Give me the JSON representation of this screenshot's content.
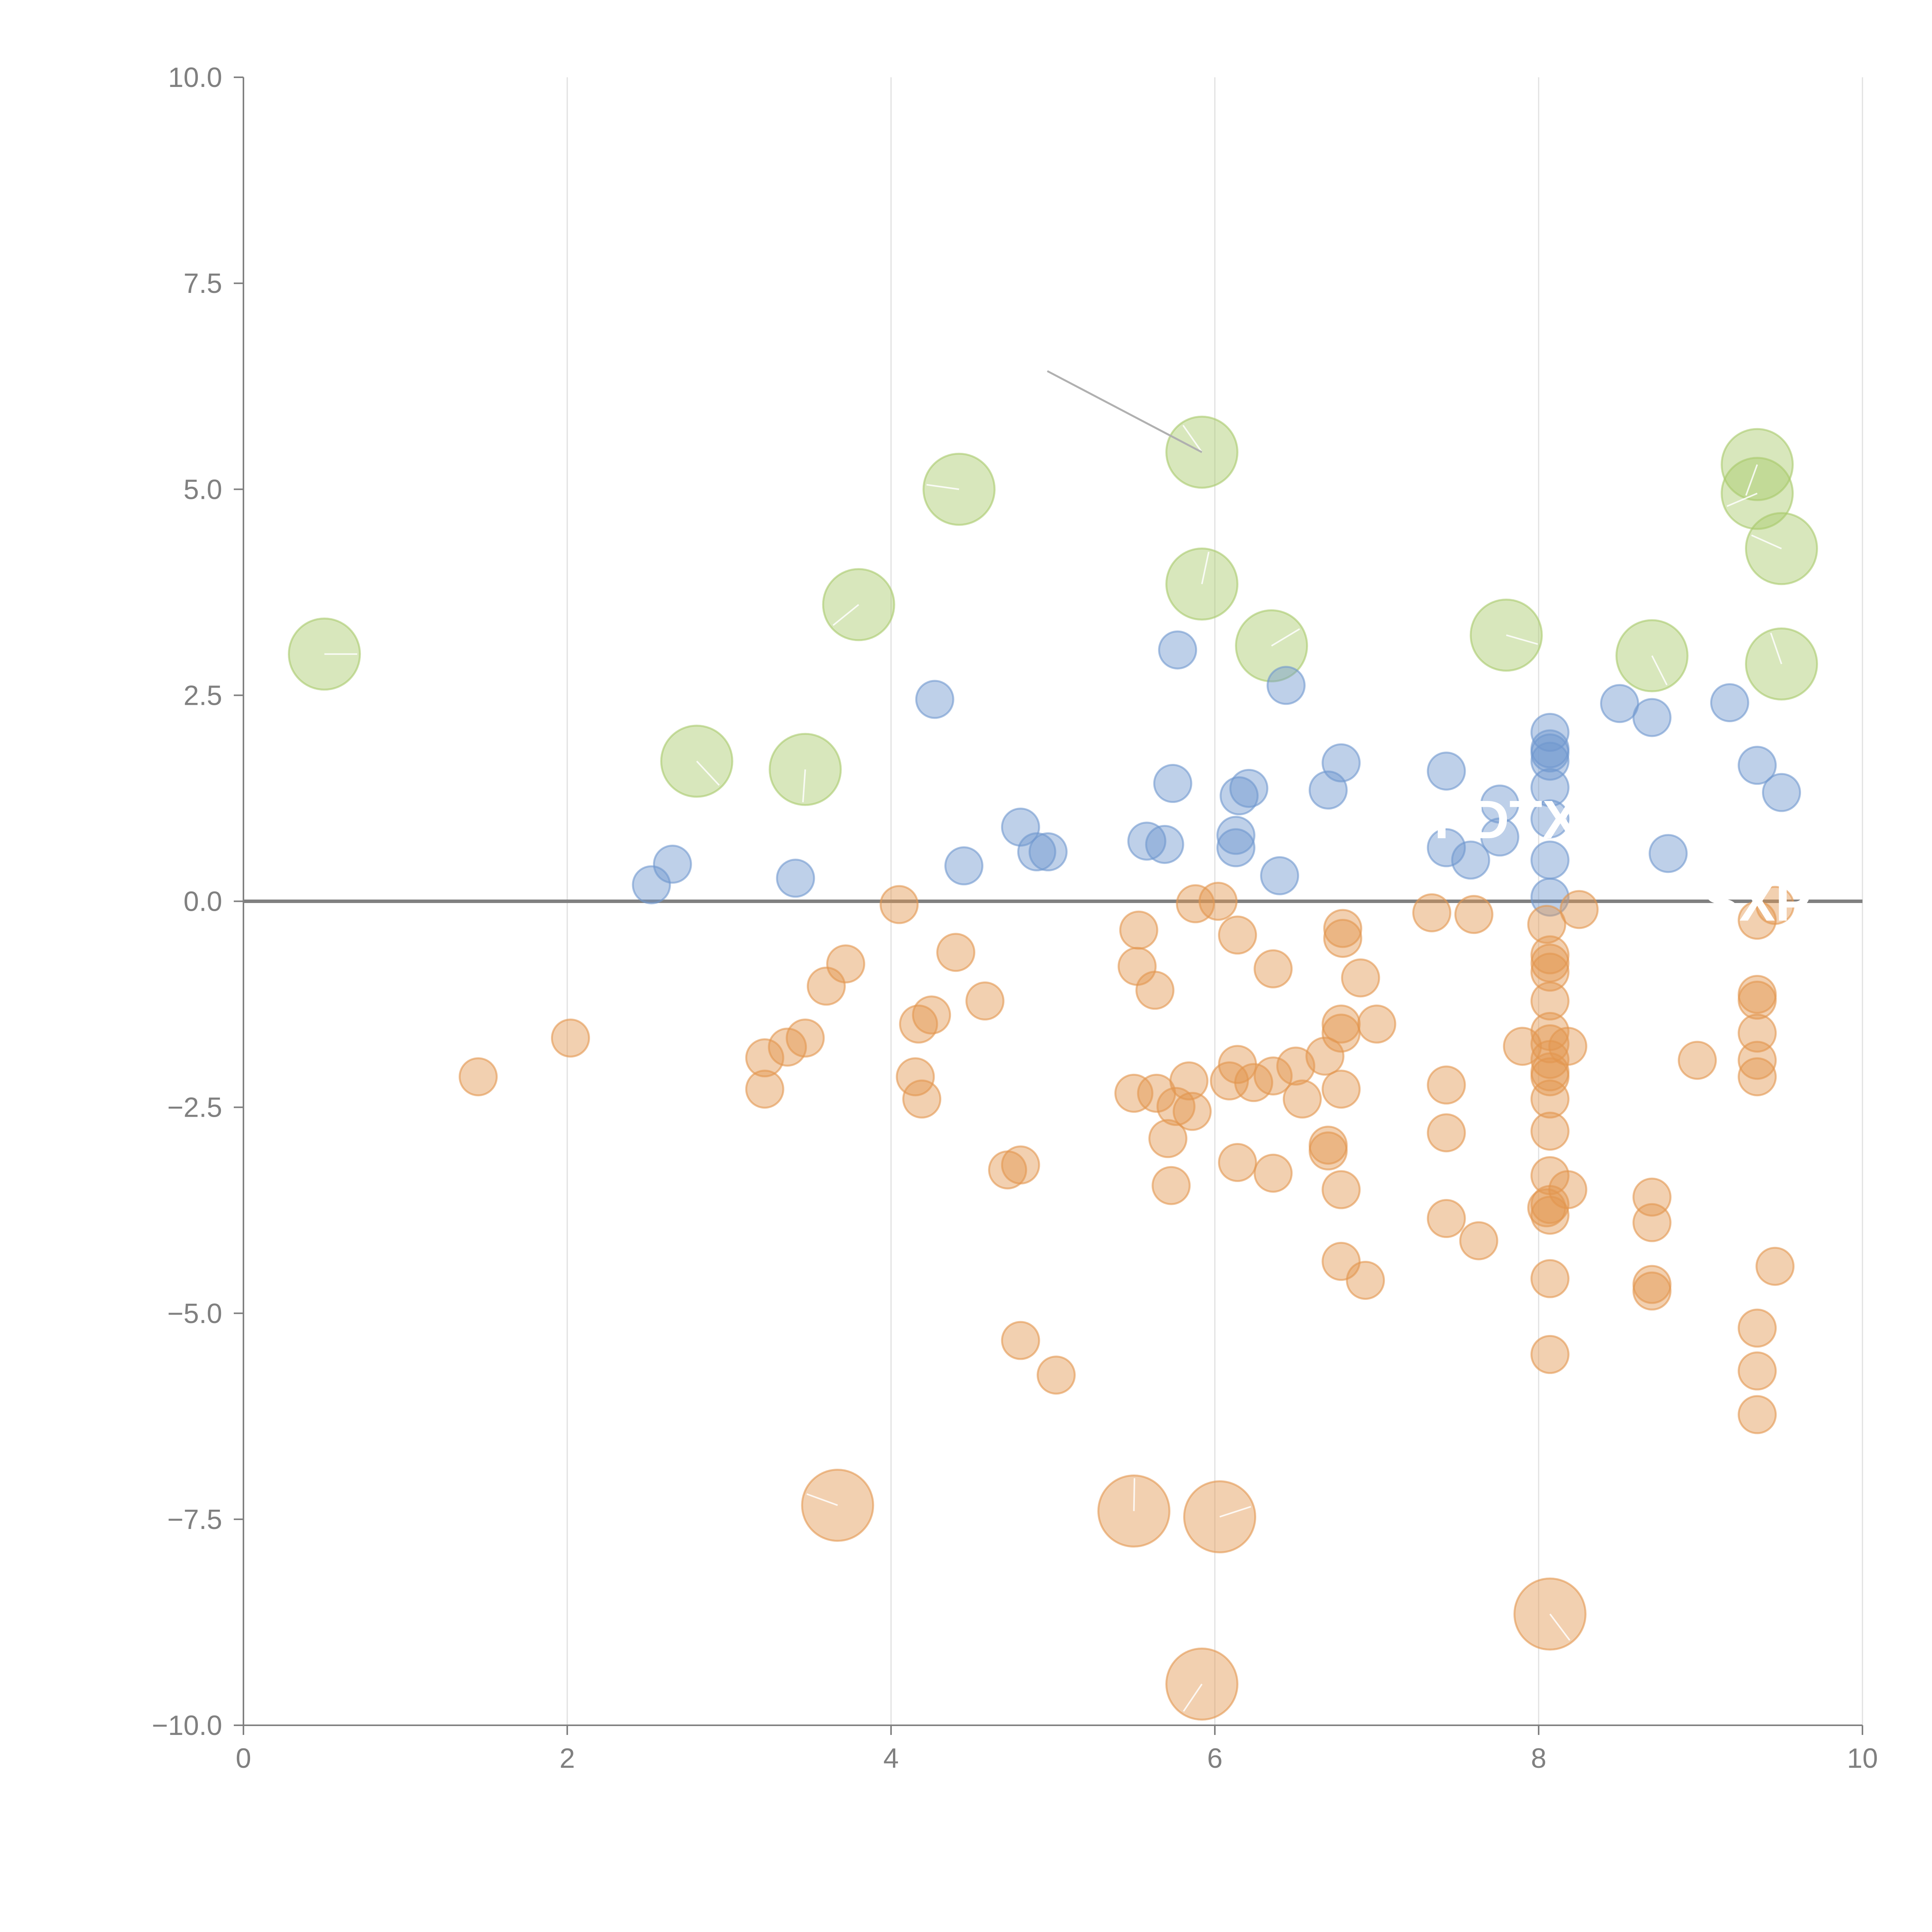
{
  "chart_data": {
    "type": "scatter",
    "title": "",
    "xlabel": "",
    "ylabel": "",
    "xlim": [
      0,
      10
    ],
    "ylim": [
      -10,
      10
    ],
    "grid": "vertical",
    "zero_line": true,
    "x_ticks": [
      "0",
      "2",
      "4",
      "6",
      "8",
      "10"
    ],
    "y_ticks": [
      "10.0",
      "7.5",
      "5.0",
      "2.5",
      "0.0",
      "−2.5",
      "−5.0",
      "−7.5",
      "−10.0"
    ],
    "colors": {
      "green": "#a9c96b",
      "blue": "#6f97cf",
      "orange": "#e3964f"
    },
    "annotations": [
      {
        "text": "PDTX",
        "x": 7.8,
        "y": 1.0
      },
      {
        "text": "SXP",
        "x": 9.35,
        "y": 0.0
      }
    ],
    "series": [
      {
        "name": "green",
        "color": "#a9c96b",
        "size": "large",
        "points": [
          [
            0.5,
            3.0
          ],
          [
            2.8,
            1.7
          ],
          [
            3.47,
            1.6
          ],
          [
            3.8,
            3.6
          ],
          [
            4.42,
            5.0
          ],
          [
            5.92,
            5.45
          ],
          [
            5.92,
            3.85
          ],
          [
            6.35,
            3.1
          ],
          [
            7.8,
            3.23
          ],
          [
            8.7,
            2.98
          ],
          [
            9.35,
            5.3
          ],
          [
            9.35,
            4.95
          ],
          [
            9.5,
            4.28
          ],
          [
            9.5,
            2.88
          ]
        ]
      },
      {
        "name": "blue",
        "color": "#6f97cf",
        "size": "medium",
        "points": [
          [
            2.52,
            0.2
          ],
          [
            2.65,
            0.45
          ],
          [
            3.41,
            0.28
          ],
          [
            4.27,
            2.45
          ],
          [
            4.45,
            0.43
          ],
          [
            4.8,
            0.9
          ],
          [
            4.9,
            0.6
          ],
          [
            4.97,
            0.6
          ],
          [
            5.58,
            0.73
          ],
          [
            5.69,
            0.69
          ],
          [
            5.74,
            1.43
          ],
          [
            5.77,
            3.05
          ],
          [
            6.13,
            0.65
          ],
          [
            6.15,
            1.28
          ],
          [
            6.21,
            1.37
          ],
          [
            6.13,
            0.8
          ],
          [
            6.4,
            0.31
          ],
          [
            6.44,
            2.62
          ],
          [
            6.7,
            1.35
          ],
          [
            6.78,
            1.68
          ],
          [
            7.43,
            1.58
          ],
          [
            7.43,
            0.65
          ],
          [
            7.58,
            0.5
          ],
          [
            7.76,
            1.18
          ],
          [
            7.76,
            0.78
          ],
          [
            8.07,
            2.05
          ],
          [
            8.07,
            1.85
          ],
          [
            8.07,
            1.7
          ],
          [
            8.07,
            1.38
          ],
          [
            8.07,
            1.0
          ],
          [
            8.07,
            0.5
          ],
          [
            8.07,
            0.05
          ],
          [
            8.07,
            1.8
          ],
          [
            8.5,
            2.4
          ],
          [
            8.7,
            2.23
          ],
          [
            8.8,
            0.58
          ],
          [
            9.18,
            2.41
          ],
          [
            9.35,
            1.65
          ],
          [
            9.5,
            1.32
          ]
        ]
      },
      {
        "name": "orange",
        "color": "#e3964f",
        "size": "medium",
        "points": [
          [
            1.45,
            -2.13
          ],
          [
            2.02,
            -1.66
          ],
          [
            3.22,
            -1.9
          ],
          [
            3.22,
            -2.28
          ],
          [
            3.36,
            -1.77
          ],
          [
            3.47,
            -1.66
          ],
          [
            3.6,
            -1.03
          ],
          [
            3.72,
            -0.76
          ],
          [
            4.05,
            -0.04
          ],
          [
            4.15,
            -2.13
          ],
          [
            4.17,
            -1.49
          ],
          [
            4.19,
            -2.4
          ],
          [
            4.25,
            -1.38
          ],
          [
            4.4,
            -0.62
          ],
          [
            4.58,
            -1.21
          ],
          [
            4.72,
            -3.26
          ],
          [
            4.8,
            -3.2
          ],
          [
            4.8,
            -5.33
          ],
          [
            5.02,
            -5.75
          ],
          [
            5.5,
            -2.33
          ],
          [
            5.52,
            -0.79
          ],
          [
            5.53,
            -0.35
          ],
          [
            5.63,
            -1.08
          ],
          [
            5.64,
            -2.33
          ],
          [
            5.71,
            -2.88
          ],
          [
            5.73,
            -3.45
          ],
          [
            5.76,
            -2.49
          ],
          [
            5.84,
            -2.18
          ],
          [
            5.86,
            -2.55
          ],
          [
            5.88,
            -0.03
          ],
          [
            6.02,
            0.0
          ],
          [
            6.09,
            -2.18
          ],
          [
            6.14,
            -1.98
          ],
          [
            6.14,
            -3.17
          ],
          [
            6.14,
            -0.41
          ],
          [
            6.24,
            -2.2
          ],
          [
            6.36,
            -0.82
          ],
          [
            6.36,
            -2.12
          ],
          [
            6.36,
            -3.3
          ],
          [
            6.5,
            -2.0
          ],
          [
            6.54,
            -2.4
          ],
          [
            6.68,
            -1.88
          ],
          [
            6.7,
            -2.96
          ],
          [
            6.7,
            -3.03
          ],
          [
            6.78,
            -1.49
          ],
          [
            6.78,
            -1.6
          ],
          [
            6.78,
            -2.28
          ],
          [
            6.78,
            -3.5
          ],
          [
            6.78,
            -4.37
          ],
          [
            6.79,
            -0.33
          ],
          [
            6.79,
            -0.45
          ],
          [
            6.9,
            -0.93
          ],
          [
            6.93,
            -4.6
          ],
          [
            7.0,
            -1.49
          ],
          [
            7.34,
            -0.14
          ],
          [
            7.43,
            -2.23
          ],
          [
            7.43,
            -2.81
          ],
          [
            7.43,
            -3.85
          ],
          [
            7.6,
            -0.16
          ],
          [
            7.63,
            -4.12
          ],
          [
            7.9,
            -1.76
          ],
          [
            8.05,
            -0.28
          ],
          [
            8.07,
            -0.65
          ],
          [
            8.07,
            -0.75
          ],
          [
            8.07,
            -0.86
          ],
          [
            8.07,
            -1.21
          ],
          [
            8.07,
            -1.58
          ],
          [
            8.07,
            -1.73
          ],
          [
            8.07,
            -1.92
          ],
          [
            8.07,
            -2.07
          ],
          [
            8.07,
            -2.13
          ],
          [
            8.07,
            -2.4
          ],
          [
            8.07,
            -2.79
          ],
          [
            8.07,
            -3.33
          ],
          [
            8.07,
            -3.68
          ],
          [
            8.07,
            -3.81
          ],
          [
            8.07,
            -4.58
          ],
          [
            8.07,
            -5.5
          ],
          [
            8.05,
            -3.72
          ],
          [
            8.18,
            -1.76
          ],
          [
            8.18,
            -3.5
          ],
          [
            8.25,
            -0.1
          ],
          [
            8.7,
            -3.59
          ],
          [
            8.7,
            -3.9
          ],
          [
            8.7,
            -4.65
          ],
          [
            8.7,
            -4.73
          ],
          [
            8.98,
            -1.93
          ],
          [
            9.35,
            -0.23
          ],
          [
            9.35,
            -1.13
          ],
          [
            9.35,
            -1.2
          ],
          [
            9.35,
            -1.6
          ],
          [
            9.35,
            -1.93
          ],
          [
            9.35,
            -2.13
          ],
          [
            9.35,
            -5.18
          ],
          [
            9.35,
            -5.7
          ],
          [
            9.35,
            -6.23
          ],
          [
            9.46,
            -4.43
          ],
          [
            9.46,
            -0.05
          ]
        ]
      },
      {
        "name": "orange-large",
        "color": "#e3964f",
        "size": "large",
        "points": [
          [
            3.67,
            -7.33
          ],
          [
            5.5,
            -7.4
          ],
          [
            6.03,
            -7.47
          ],
          [
            8.07,
            -8.65
          ],
          [
            5.92,
            -9.5
          ]
        ]
      }
    ]
  }
}
